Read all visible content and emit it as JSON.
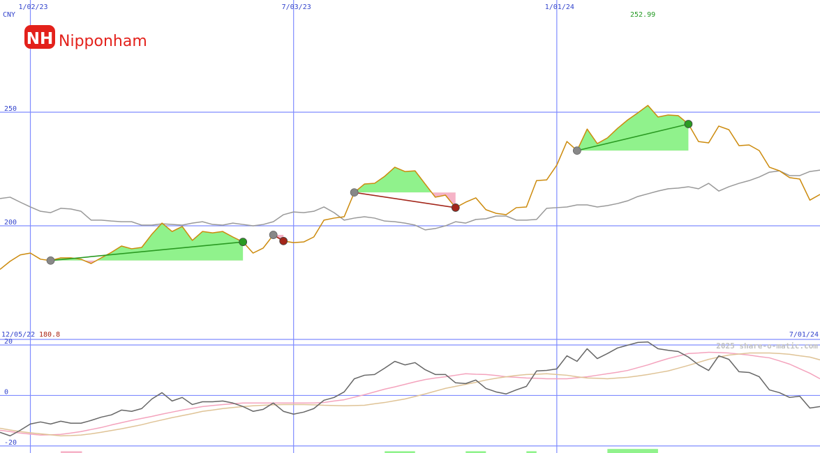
{
  "logo": {
    "mark": "NH",
    "name": "Nipponham"
  },
  "watermark": "2025 share-o-matic.com",
  "chart_data": [
    {
      "type": "line",
      "currency": "CNY",
      "high": 252.99,
      "low": 180.8,
      "start_date": "12/05/22",
      "end_date": "7/01/24",
      "x": [
        1,
        2,
        3,
        4,
        5,
        6,
        7,
        8,
        9,
        10,
        11,
        12,
        13,
        14,
        15,
        16,
        17,
        18,
        19,
        20,
        21,
        22,
        23,
        24,
        25,
        26,
        27,
        28,
        29,
        30,
        31,
        32,
        33,
        34,
        35,
        36,
        37,
        38,
        39,
        40,
        41,
        42,
        43,
        44,
        45,
        46,
        47,
        48,
        49,
        50,
        51,
        52,
        53,
        54,
        55,
        56,
        57,
        58,
        59,
        60,
        61,
        62,
        63,
        64,
        65,
        66,
        67,
        68,
        69,
        70,
        71,
        72,
        73,
        74,
        75,
        76,
        77,
        78,
        79,
        80,
        81,
        82
      ],
      "xlim": [
        1,
        82
      ],
      "xticks": [
        {
          "value": 4,
          "label": "1/02/23"
        },
        {
          "value": 30,
          "label": "7/03/23"
        },
        {
          "value": 56,
          "label": "1/01/24"
        }
      ],
      "ylim": [
        150,
        299.4
      ],
      "yticks": [
        200,
        250
      ],
      "grid": true,
      "gain_color": "#90f28c",
      "loss_color": "#f6b3c7",
      "series": [
        {
          "color": "#999999",
          "values": [
            212.0,
            212.6,
            210.4,
            208.3,
            206.4,
            205.8,
            207.7,
            207.4,
            206.4,
            202.5,
            202.5,
            202.1,
            201.8,
            201.8,
            200.3,
            200.3,
            200.9,
            200.6,
            200.3,
            201.2,
            201.8,
            200.6,
            200.3,
            201.2,
            200.6,
            200.0,
            200.6,
            201.8,
            204.9,
            206.1,
            205.8,
            206.4,
            208.3,
            205.8,
            202.5,
            203.4,
            204.0,
            203.4,
            202.1,
            201.8,
            201.2,
            200.3,
            198.2,
            198.8,
            200.0,
            201.8,
            201.2,
            202.8,
            203.1,
            204.3,
            204.3,
            202.5,
            202.5,
            202.8,
            207.7,
            208.0,
            208.3,
            209.2,
            209.2,
            208.3,
            208.9,
            209.8,
            211.0,
            212.9,
            214.1,
            215.3,
            216.3,
            216.6,
            217.2,
            216.3,
            218.7,
            215.3,
            217.2,
            218.7,
            219.9,
            221.5,
            223.6,
            224.2,
            222.1,
            222.1,
            223.9,
            224.5
          ]
        },
        {
          "color": "#cc8a0c",
          "values": [
            180.8,
            184.4,
            187.2,
            188.0,
            185.3,
            184.7,
            185.9,
            185.9,
            185.3,
            183.4,
            185.9,
            188.3,
            191.1,
            189.9,
            190.5,
            196.3,
            201.2,
            197.5,
            199.7,
            193.6,
            197.5,
            196.9,
            197.5,
            195.1,
            192.9,
            188.0,
            190.2,
            196.0,
            193.3,
            192.6,
            192.9,
            195.1,
            202.5,
            203.4,
            204.0,
            214.7,
            218.4,
            218.7,
            221.8,
            225.8,
            223.9,
            224.2,
            218.4,
            212.6,
            213.5,
            208.0,
            210.4,
            212.3,
            207.1,
            205.5,
            204.9,
            208.0,
            208.3,
            219.9,
            220.2,
            226.7,
            237.1,
            233.1,
            242.6,
            236.2,
            238.7,
            242.9,
            246.6,
            249.7,
            252.99,
            247.9,
            248.8,
            248.5,
            244.8,
            237.1,
            236.5,
            243.9,
            242.3,
            235.3,
            235.6,
            233.1,
            225.8,
            224.2,
            221.2,
            220.6,
            211.3,
            213.8
          ]
        }
      ],
      "trades": [
        {
          "from": 6,
          "to": 25,
          "color": "#2a9a22"
        },
        {
          "from": 28,
          "to": 29,
          "color": "#a3261a"
        },
        {
          "from": 36,
          "to": 46,
          "color": "#a3261a"
        },
        {
          "from": 58,
          "to": 69,
          "color": "#2a9a22"
        }
      ]
    },
    {
      "type": "line",
      "x": [
        1,
        2,
        3,
        4,
        5,
        6,
        7,
        8,
        9,
        10,
        11,
        12,
        13,
        14,
        15,
        16,
        17,
        18,
        19,
        20,
        21,
        22,
        23,
        24,
        25,
        26,
        27,
        28,
        29,
        30,
        31,
        32,
        33,
        34,
        35,
        36,
        37,
        38,
        39,
        40,
        41,
        42,
        43,
        44,
        45,
        46,
        47,
        48,
        49,
        50,
        51,
        52,
        53,
        54,
        55,
        56,
        57,
        58,
        59,
        60,
        61,
        62,
        63,
        64,
        65,
        66,
        67,
        68,
        69,
        70,
        71,
        72,
        73,
        74,
        75,
        76,
        77,
        78,
        79,
        80,
        81,
        82
      ],
      "xlim": [
        1,
        82
      ],
      "ylim": [
        -22.8,
        22.2
      ],
      "yticks": [
        -20,
        0,
        20
      ],
      "grid": true,
      "series": [
        {
          "color": "#f4a3bd",
          "values": [
            -13.8,
            -14.3,
            -14.9,
            -15.3,
            -15.7,
            -15.6,
            -15.4,
            -14.9,
            -14.3,
            -13.5,
            -12.7,
            -11.7,
            -10.8,
            -9.9,
            -9.1,
            -8.3,
            -7.4,
            -6.6,
            -5.8,
            -5.1,
            -4.4,
            -4.0,
            -3.6,
            -3.3,
            -3.0,
            -3.0,
            -3.0,
            -3.0,
            -3.0,
            -3.0,
            -3.0,
            -3.0,
            -2.8,
            -2.2,
            -1.7,
            -0.7,
            0.3,
            1.4,
            2.5,
            3.4,
            4.4,
            5.4,
            6.3,
            6.9,
            7.4,
            8.0,
            8.6,
            8.4,
            8.3,
            7.9,
            7.4,
            7.2,
            6.9,
            6.8,
            6.6,
            6.6,
            6.6,
            7.0,
            7.4,
            8.0,
            8.6,
            9.2,
            9.9,
            11.0,
            12.1,
            13.4,
            14.6,
            15.6,
            16.6,
            16.8,
            17.1,
            17.0,
            16.8,
            16.4,
            16.0,
            15.4,
            14.9,
            13.7,
            12.4,
            10.6,
            8.8,
            6.6
          ]
        },
        {
          "color": "#dfc396",
          "values": [
            -13.0,
            -13.7,
            -14.3,
            -14.8,
            -15.2,
            -15.6,
            -16.0,
            -15.9,
            -15.7,
            -15.2,
            -14.6,
            -13.9,
            -13.2,
            -12.4,
            -11.6,
            -10.6,
            -9.7,
            -8.8,
            -8.0,
            -7.2,
            -6.3,
            -5.8,
            -5.2,
            -4.8,
            -4.4,
            -4.1,
            -3.9,
            -3.7,
            -3.6,
            -3.6,
            -3.6,
            -3.7,
            -3.9,
            -4.0,
            -4.1,
            -4.0,
            -3.9,
            -3.3,
            -2.8,
            -2.1,
            -1.4,
            -0.4,
            0.6,
            1.7,
            2.8,
            3.6,
            4.4,
            5.2,
            6.1,
            6.8,
            7.4,
            7.9,
            8.3,
            8.4,
            8.6,
            8.3,
            8.0,
            7.4,
            6.9,
            6.8,
            6.6,
            6.9,
            7.2,
            7.7,
            8.3,
            9.0,
            9.7,
            10.8,
            11.9,
            13.1,
            14.3,
            15.2,
            16.0,
            16.4,
            16.8,
            16.8,
            16.8,
            16.6,
            16.3,
            15.7,
            15.2,
            14.1
          ]
        },
        {
          "color": "#666666",
          "values": [
            -14.6,
            -16.0,
            -13.8,
            -11.3,
            -10.5,
            -11.3,
            -10.2,
            -11.0,
            -11.0,
            -9.9,
            -8.6,
            -7.7,
            -5.8,
            -6.3,
            -5.2,
            -1.4,
            1.1,
            -2.2,
            -0.8,
            -3.6,
            -2.5,
            -2.5,
            -2.2,
            -3.0,
            -4.4,
            -6.3,
            -5.5,
            -3.0,
            -6.3,
            -7.4,
            -6.6,
            -5.2,
            -1.9,
            -0.8,
            1.4,
            6.6,
            8.0,
            8.3,
            10.8,
            13.5,
            12.1,
            13.0,
            10.2,
            8.3,
            8.3,
            5.0,
            4.7,
            6.1,
            2.8,
            1.4,
            0.6,
            2.2,
            3.6,
            9.7,
            9.9,
            10.5,
            15.7,
            13.5,
            18.5,
            14.6,
            16.6,
            18.8,
            19.9,
            21.0,
            21.2,
            18.5,
            17.9,
            17.4,
            15.2,
            12.1,
            9.9,
            15.7,
            14.3,
            9.4,
            9.1,
            7.4,
            2.2,
            1.1,
            -0.8,
            -0.3,
            -5.0,
            -4.4
          ]
        }
      ],
      "bars": [
        {
          "from": 7,
          "to": 9.1,
          "value": -22.1,
          "color": "#f6b3c7"
        },
        {
          "from": 39,
          "to": 42,
          "value": -22.1,
          "color": "#90f28c"
        },
        {
          "from": 47,
          "to": 49,
          "value": -22.1,
          "color": "#90f28c"
        },
        {
          "from": 53,
          "to": 54,
          "value": -22.1,
          "color": "#90f28c"
        },
        {
          "from": 61,
          "to": 66,
          "value": -21.2,
          "color": "#90f28c"
        }
      ]
    }
  ]
}
